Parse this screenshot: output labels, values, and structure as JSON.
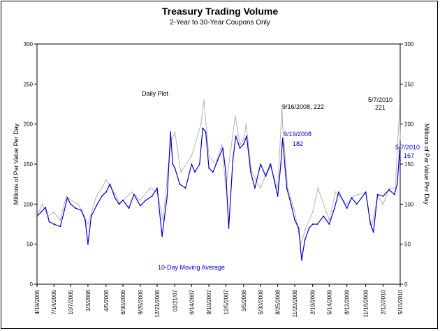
{
  "chart_data": {
    "type": "line",
    "title": "Treasury Trading Volume",
    "subtitle": "2-Year to 30-Year Coupons Only",
    "ylabel_left": "Millions of Par Value Per Day",
    "ylabel_right": "Millions of Par Value Per Day",
    "ylim": [
      0,
      300
    ],
    "yticks": [
      0,
      50,
      100,
      150,
      200,
      250,
      300
    ],
    "xlim": [
      "4/19/2005",
      "5/10/2010"
    ],
    "xticks": [
      "4/19/2005",
      "7/14/2005",
      "10/7/2005",
      "1/3/2006",
      "4/5/2006",
      "6/30/2006",
      "9/26/2006",
      "12/21/2006",
      "03/21/07",
      "6/14/2007",
      "9/10/2007",
      "12/5/2007",
      "3/5/2008",
      "5/30/2008",
      "8/25/2008",
      "11/20/2008",
      "2/19/2009",
      "5/14/2009",
      "8/12/2009",
      "11/16/2009",
      "2/12/2010",
      "5/10/2010"
    ],
    "grid": false,
    "series": [
      {
        "name": "Daily Plot",
        "color": "#b4b4b4",
        "points": [
          [
            "4/19/2005",
            85
          ],
          [
            "5/15/2005",
            100
          ],
          [
            "6/15/2005",
            85
          ],
          [
            "7/14/2005",
            90
          ],
          [
            "8/15/2005",
            80
          ],
          [
            "9/15/2005",
            110
          ],
          [
            "10/7/2005",
            105
          ],
          [
            "11/15/2005",
            100
          ],
          [
            "12/15/2005",
            85
          ],
          [
            "1/3/2006",
            75
          ],
          [
            "2/15/2006",
            110
          ],
          [
            "3/15/2006",
            120
          ],
          [
            "4/5/2006",
            130
          ],
          [
            "5/15/2006",
            115
          ],
          [
            "6/15/2006",
            100
          ],
          [
            "6/30/2006",
            105
          ],
          [
            "8/15/2006",
            115
          ],
          [
            "9/26/2006",
            105
          ],
          [
            "11/15/2006",
            120
          ],
          [
            "12/21/2006",
            115
          ],
          [
            "1/20/2007",
            80
          ],
          [
            "2/27/2007",
            175
          ],
          [
            "3/21/2007",
            190
          ],
          [
            "4/20/2007",
            140
          ],
          [
            "6/14/2007",
            160
          ],
          [
            "8/1/2007",
            200
          ],
          [
            "8/16/2007",
            230
          ],
          [
            "9/10/2007",
            160
          ],
          [
            "10/15/2007",
            150
          ],
          [
            "11/15/2007",
            175
          ],
          [
            "12/5/2007",
            120
          ],
          [
            "1/22/2008",
            210
          ],
          [
            "2/15/2008",
            175
          ],
          [
            "3/5/2008",
            180
          ],
          [
            "3/17/2008",
            200
          ],
          [
            "4/15/2008",
            140
          ],
          [
            "5/30/2008",
            120
          ],
          [
            "7/15/2008",
            150
          ],
          [
            "8/25/2008",
            120
          ],
          [
            "9/16/2008",
            222
          ],
          [
            "9/19/2008",
            200
          ],
          [
            "10/15/2008",
            120
          ],
          [
            "11/20/2008",
            90
          ],
          [
            "12/20/2008",
            50
          ],
          [
            "1/15/2009",
            70
          ],
          [
            "2/19/2009",
            90
          ],
          [
            "3/18/2009",
            120
          ],
          [
            "5/14/2009",
            80
          ],
          [
            "6/15/2009",
            115
          ],
          [
            "8/12/2009",
            100
          ],
          [
            "9/15/2009",
            110
          ],
          [
            "11/16/2009",
            115
          ],
          [
            "12/15/2009",
            70
          ],
          [
            "1/15/2010",
            110
          ],
          [
            "2/12/2010",
            100
          ],
          [
            "3/15/2010",
            120
          ],
          [
            "4/15/2010",
            120
          ],
          [
            "5/7/2010",
            221
          ],
          [
            "5/10/2010",
            180
          ]
        ]
      },
      {
        "name": "10-Day Moving Average",
        "color": "#0000cc",
        "points": [
          [
            "4/19/2005",
            85
          ],
          [
            "5/10/2005",
            90
          ],
          [
            "6/1/2005",
            96
          ],
          [
            "6/20/2005",
            78
          ],
          [
            "7/14/2005",
            75
          ],
          [
            "8/15/2005",
            72
          ],
          [
            "9/1/2005",
            88
          ],
          [
            "9/20/2005",
            108
          ],
          [
            "10/7/2005",
            100
          ],
          [
            "11/1/2005",
            95
          ],
          [
            "12/1/2005",
            92
          ],
          [
            "12/20/2005",
            80
          ],
          [
            "1/3/2006",
            50
          ],
          [
            "1/20/2006",
            85
          ],
          [
            "2/15/2006",
            98
          ],
          [
            "3/15/2006",
            110
          ],
          [
            "4/5/2006",
            115
          ],
          [
            "4/25/2006",
            125
          ],
          [
            "5/20/2006",
            108
          ],
          [
            "6/10/2006",
            100
          ],
          [
            "6/30/2006",
            105
          ],
          [
            "7/30/2006",
            95
          ],
          [
            "8/25/2006",
            112
          ],
          [
            "9/26/2006",
            98
          ],
          [
            "10/25/2006",
            105
          ],
          [
            "11/25/2006",
            110
          ],
          [
            "12/21/2006",
            120
          ],
          [
            "1/15/2007",
            60
          ],
          [
            "2/10/2007",
            110
          ],
          [
            "2/27/2007",
            190
          ],
          [
            "3/10/2007",
            150
          ],
          [
            "3/21/2007",
            145
          ],
          [
            "4/15/2007",
            125
          ],
          [
            "5/15/2007",
            120
          ],
          [
            "6/14/2007",
            150
          ],
          [
            "7/1/2007",
            140
          ],
          [
            "7/25/2007",
            150
          ],
          [
            "8/10/2007",
            195
          ],
          [
            "8/25/2007",
            190
          ],
          [
            "9/10/2007",
            145
          ],
          [
            "10/1/2007",
            140
          ],
          [
            "10/25/2007",
            155
          ],
          [
            "11/20/2007",
            170
          ],
          [
            "12/5/2007",
            140
          ],
          [
            "12/20/2007",
            70
          ],
          [
            "1/10/2008",
            155
          ],
          [
            "1/25/2008",
            185
          ],
          [
            "2/15/2008",
            170
          ],
          [
            "3/5/2008",
            175
          ],
          [
            "3/20/2008",
            185
          ],
          [
            "4/10/2008",
            140
          ],
          [
            "5/1/2008",
            120
          ],
          [
            "5/30/2008",
            150
          ],
          [
            "6/25/2008",
            135
          ],
          [
            "7/20/2008",
            150
          ],
          [
            "8/25/2008",
            110
          ],
          [
            "9/10/2008",
            150
          ],
          [
            "9/19/2008",
            182
          ],
          [
            "10/10/2008",
            120
          ],
          [
            "11/1/2008",
            100
          ],
          [
            "11/20/2008",
            80
          ],
          [
            "12/10/2008",
            70
          ],
          [
            "12/25/2008",
            30
          ],
          [
            "1/10/2009",
            55
          ],
          [
            "2/1/2009",
            70
          ],
          [
            "2/19/2009",
            75
          ],
          [
            "3/15/2009",
            75
          ],
          [
            "4/15/2009",
            85
          ],
          [
            "5/14/2009",
            75
          ],
          [
            "6/10/2009",
            95
          ],
          [
            "7/1/2009",
            115
          ],
          [
            "8/12/2009",
            95
          ],
          [
            "9/5/2009",
            108
          ],
          [
            "10/1/2009",
            100
          ],
          [
            "11/16/2009",
            115
          ],
          [
            "12/10/2009",
            75
          ],
          [
            "12/25/2009",
            65
          ],
          [
            "1/15/2010",
            112
          ],
          [
            "2/12/2010",
            110
          ],
          [
            "3/15/2010",
            118
          ],
          [
            "4/10/2010",
            112
          ],
          [
            "4/25/2010",
            125
          ],
          [
            "5/7/2010",
            167
          ],
          [
            "5/10/2010",
            155
          ]
        ]
      }
    ],
    "annotations": [
      {
        "text": "Daily Plot",
        "color": "#000000"
      },
      {
        "text": "9/16/2008, 222",
        "color": "#000000"
      },
      {
        "text": "5/7/2010",
        "color": "#000000"
      },
      {
        "text": "221",
        "color": "#000000"
      },
      {
        "text": "9/19/2008",
        "color": "#0000cc"
      },
      {
        "text": "182",
        "color": "#0000cc"
      },
      {
        "text": "5/7/2010",
        "color": "#0000cc"
      },
      {
        "text": "167",
        "color": "#0000cc"
      },
      {
        "text": "10-Day Moving Average",
        "color": "#0000cc"
      }
    ]
  }
}
